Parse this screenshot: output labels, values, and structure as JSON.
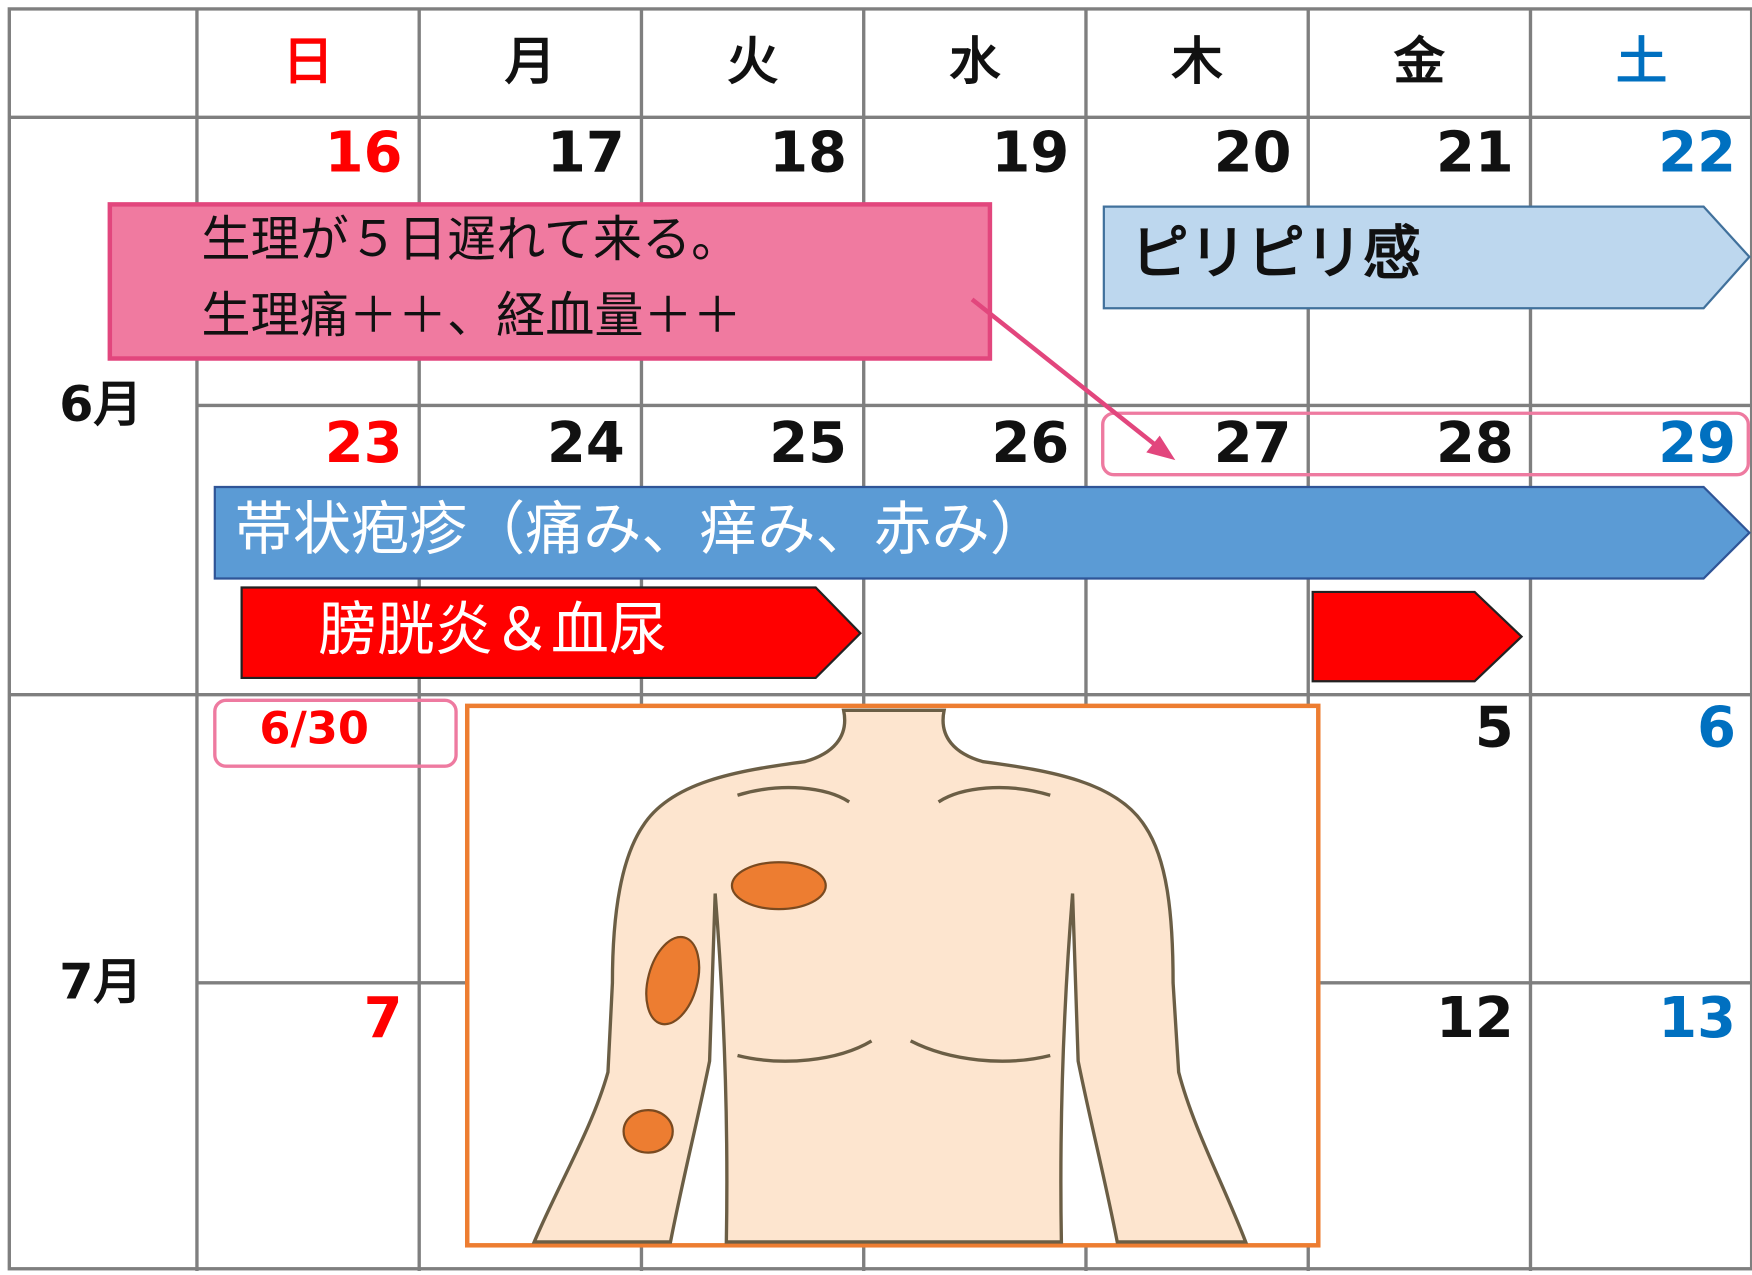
{
  "header": {
    "weekdays": [
      "日",
      "月",
      "火",
      "水",
      "木",
      "金",
      "土"
    ]
  },
  "months": [
    "6月",
    "7月"
  ],
  "weeks": [
    [
      "16",
      "17",
      "18",
      "19",
      "20",
      "21",
      "22"
    ],
    [
      "23",
      "24",
      "25",
      "26",
      "27",
      "28",
      "29"
    ],
    [
      "6/30",
      null,
      null,
      null,
      null,
      "5",
      "6"
    ],
    [
      "7",
      null,
      null,
      null,
      null,
      "12",
      "13"
    ]
  ],
  "note": {
    "lines": [
      "生理が５日遅れて来る。",
      "生理痛＋＋、経血量＋＋"
    ]
  },
  "bars": {
    "tingling": "ピリピリ感",
    "shingles": "帯状疱疹（痛み、痒み、赤み）",
    "cystitis": "膀胱炎＆血尿"
  }
}
